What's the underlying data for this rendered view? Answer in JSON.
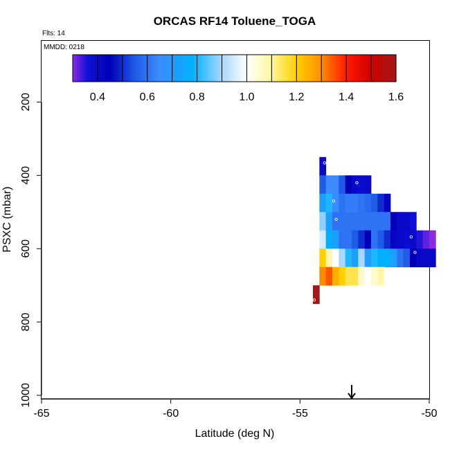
{
  "header": {
    "title": "ORCAS RF14 Toluene_TOGA",
    "flts_label": "Flts: 14",
    "mmdd_label": "MMDD: 0218"
  },
  "colorbar": {
    "min": 0.3,
    "max": 1.6,
    "ticks": [
      "0.4",
      "0.6",
      "0.8",
      "1.0",
      "1.2",
      "1.4",
      "1.6"
    ],
    "tick_values": [
      0.4,
      0.6,
      0.8,
      1.0,
      1.2,
      1.4,
      1.6
    ],
    "stops": [
      {
        "v": 0.3,
        "color": "#8A2BE2"
      },
      {
        "v": 0.36,
        "color": "#1010D8"
      },
      {
        "v": 0.45,
        "color": "#0000B8"
      },
      {
        "v": 0.55,
        "color": "#1E5BE6"
      },
      {
        "v": 0.65,
        "color": "#3C8CFF"
      },
      {
        "v": 0.78,
        "color": "#00B0FF"
      },
      {
        "v": 0.9,
        "color": "#A8D8FF"
      },
      {
        "v": 1.0,
        "color": "#FFFFFF"
      },
      {
        "v": 1.1,
        "color": "#FFF59A"
      },
      {
        "v": 1.2,
        "color": "#FFD000"
      },
      {
        "v": 1.3,
        "color": "#FF8C00"
      },
      {
        "v": 1.4,
        "color": "#FF1A00"
      },
      {
        "v": 1.5,
        "color": "#D00000"
      },
      {
        "v": 1.6,
        "color": "#A01818"
      }
    ]
  },
  "chart_data": {
    "type": "heatmap",
    "title": "ORCAS RF14 Toluene_TOGA",
    "xlabel": "Latitude (deg N)",
    "ylabel": "PSXC (mbar)",
    "xlim": [
      -65,
      -50
    ],
    "ylim": [
      1000,
      0
    ],
    "xticks": [
      "-65",
      "-60",
      "-55",
      "-50"
    ],
    "xtick_values": [
      -65,
      -60,
      -55,
      -50
    ],
    "yticks": [
      "200",
      "400",
      "600",
      "800",
      "1000"
    ],
    "ytick_values": [
      200,
      400,
      600,
      800,
      1000
    ],
    "cell_width_deg": 0.25,
    "cell_height_mbar": 50,
    "colorbar_range": [
      0.3,
      1.6
    ],
    "arrow_latitude": -53.0,
    "rows": [
      {
        "p": 375,
        "x0": -54.25,
        "values": [
          0.4
        ]
      },
      {
        "p": 425,
        "x0": -54.25,
        "values": [
          0.55,
          0.65,
          0.65,
          0.55,
          0.45,
          0.4,
          0.38,
          0.4
        ]
      },
      {
        "p": 475,
        "x0": -54.25,
        "values": [
          0.72,
          0.8,
          0.65,
          0.6,
          0.62,
          0.62,
          0.6,
          0.58,
          0.55,
          0.5,
          0.42
        ]
      },
      {
        "p": 525,
        "x0": -54.25,
        "values": [
          0.88,
          0.72,
          0.6,
          0.6,
          0.6,
          0.6,
          0.6,
          0.6,
          0.6,
          0.6,
          0.6,
          0.45,
          0.4,
          0.4,
          0.37
        ]
      },
      {
        "p": 575,
        "x0": -54.25,
        "values": [
          0.95,
          0.78,
          0.72,
          0.6,
          0.6,
          0.55,
          0.5,
          0.45,
          0.6,
          0.55,
          0.5,
          0.42,
          0.4,
          0.38,
          0.4,
          0.35,
          0.32,
          0.3
        ]
      },
      {
        "p": 625,
        "x0": -54.25,
        "values": [
          1.2,
          1.08,
          1.0,
          0.9,
          0.8,
          0.72,
          0.9,
          0.7,
          0.8,
          0.78,
          0.78,
          0.72,
          0.6,
          0.55,
          0.45,
          0.4,
          0.4,
          0.4
        ]
      },
      {
        "p": 675,
        "x0": -54.25,
        "values": [
          1.3,
          1.35,
          1.25,
          1.2,
          1.15,
          1.15,
          1.05,
          1.0,
          1.05,
          1.08
        ]
      },
      {
        "p": 725,
        "x0": -54.5,
        "values": [
          1.6
        ]
      }
    ],
    "points": [
      {
        "lat": -54.05,
        "p": 366
      },
      {
        "lat": -52.8,
        "p": 420
      },
      {
        "lat": -53.7,
        "p": 470
      },
      {
        "lat": -53.6,
        "p": 520
      },
      {
        "lat": -50.7,
        "p": 568
      },
      {
        "lat": -50.55,
        "p": 610
      },
      {
        "lat": -54.45,
        "p": 740
      }
    ]
  }
}
